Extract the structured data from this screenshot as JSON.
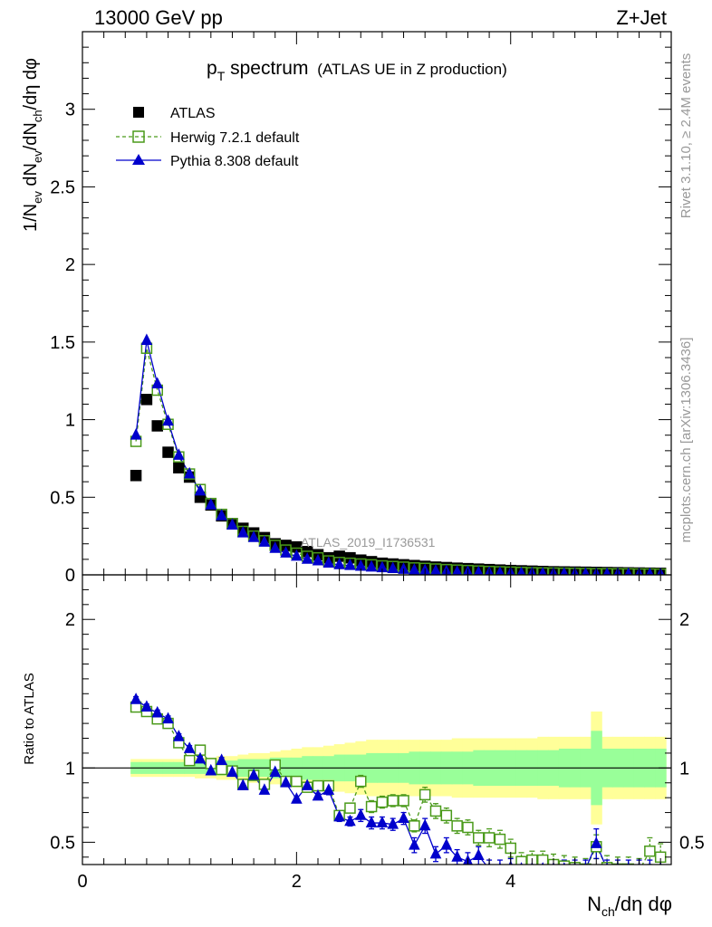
{
  "header": {
    "left": "13000 GeV pp",
    "right": "Z+Jet"
  },
  "title": {
    "main": "p",
    "main_sub": "T",
    "main_rest": " spectrum",
    "detail": "(ATLAS UE in Z production)"
  },
  "side_labels": {
    "rivet": "Rivet 3.1.10, ≥ 2.4M events",
    "mcplots": "mcplots.cern.ch [arXiv:1306.3436]"
  },
  "watermark": "ATLAS_2019_I1736531",
  "ylabel_main": {
    "p1": "1/N",
    "s1": "ev",
    "p2": " dN",
    "s2": "ev",
    "p3": "/dN",
    "s3": "ch",
    "p4": "/dη dφ"
  },
  "ylabel_ratio": "Ratio to ATLAS",
  "xlabel": {
    "p1": "N",
    "s1": "ch",
    "p2": "/dη dφ"
  },
  "colors": {
    "atlas": "#000000",
    "herwig": "#4a9a1a",
    "pythia": "#0000cc",
    "band_outer": "#ffff99",
    "band_inner": "#99ff99"
  },
  "chart_data": [
    {
      "type": "scatter",
      "name": "main-panel",
      "xlim": [
        0,
        5.5
      ],
      "ylim": [
        0,
        3.5
      ],
      "yticks": [
        {
          "v": 0,
          "label": "0"
        },
        {
          "v": 0.5,
          "label": "0.5"
        },
        {
          "v": 1,
          "label": "1"
        },
        {
          "v": 1.5,
          "label": "1.5"
        },
        {
          "v": 2,
          "label": "2"
        },
        {
          "v": 2.5,
          "label": "2.5"
        },
        {
          "v": 3,
          "label": "3"
        }
      ],
      "legend_position": "top-left",
      "x": [
        0.5,
        0.6,
        0.7,
        0.8,
        0.9,
        1.0,
        1.1,
        1.2,
        1.3,
        1.4,
        1.5,
        1.6,
        1.7,
        1.8,
        1.9,
        2.0,
        2.1,
        2.2,
        2.3,
        2.4,
        2.5,
        2.6,
        2.7,
        2.8,
        2.9,
        3.0,
        3.1,
        3.2,
        3.3,
        3.4,
        3.5,
        3.6,
        3.7,
        3.8,
        3.9,
        4.0,
        4.1,
        4.2,
        4.3,
        4.4,
        4.5,
        4.6,
        4.7,
        4.8,
        4.9,
        5.0,
        5.1,
        5.2,
        5.3,
        5.4
      ],
      "series": [
        {
          "name": "ATLAS",
          "values": [
            0.64,
            1.13,
            0.96,
            0.79,
            0.69,
            0.63,
            0.5,
            0.45,
            0.38,
            0.33,
            0.3,
            0.27,
            0.24,
            0.2,
            0.19,
            0.18,
            0.15,
            0.13,
            0.11,
            0.12,
            0.11,
            0.095,
            0.085,
            0.075,
            0.07,
            0.065,
            0.06,
            0.055,
            0.05,
            0.047,
            0.043,
            0.04,
            0.037,
            0.034,
            0.031,
            0.028,
            0.026,
            0.024,
            0.022,
            0.02,
            0.019,
            0.018,
            0.017,
            0.016,
            0.015,
            0.014,
            0.013,
            0.012,
            0.011,
            0.01
          ]
        },
        {
          "name": "Herwig 7.2.1 default",
          "values": [
            0.86,
            1.46,
            1.19,
            0.97,
            0.76,
            0.65,
            0.55,
            0.46,
            0.39,
            0.33,
            0.28,
            0.25,
            0.22,
            0.19,
            0.16,
            0.14,
            0.12,
            0.11,
            0.09,
            0.08,
            0.075,
            0.07,
            0.065,
            0.058,
            0.054,
            0.05,
            0.045,
            0.042,
            0.038,
            0.034,
            0.031,
            0.028,
            0.025,
            0.022,
            0.02,
            0.018,
            0.016,
            0.014,
            0.013,
            0.012,
            0.011,
            0.01,
            0.009,
            0.008,
            0.008,
            0.007,
            0.007,
            0.006,
            0.006,
            0.005
          ]
        },
        {
          "name": "Pythia 8.308 default",
          "values": [
            0.9,
            1.51,
            1.23,
            0.99,
            0.77,
            0.65,
            0.54,
            0.45,
            0.38,
            0.32,
            0.27,
            0.24,
            0.21,
            0.17,
            0.14,
            0.12,
            0.1,
            0.09,
            0.075,
            0.065,
            0.06,
            0.055,
            0.05,
            0.045,
            0.04,
            0.035,
            0.03,
            0.027,
            0.024,
            0.021,
            0.018,
            0.016,
            0.014,
            0.012,
            0.011,
            0.01,
            0.009,
            0.008,
            0.007,
            0.006,
            0.006,
            0.005,
            0.005,
            0.004,
            0.004,
            0.004,
            0.003,
            0.003,
            0.003,
            0.003
          ]
        }
      ]
    },
    {
      "type": "scatter",
      "name": "ratio-panel",
      "xlim": [
        0,
        5.5
      ],
      "ylim": [
        0.35,
        2.3
      ],
      "xticks": [
        {
          "v": 0,
          "label": "0"
        },
        {
          "v": 2,
          "label": "2"
        },
        {
          "v": 4,
          "label": "4"
        }
      ],
      "yticks": [
        {
          "v": 0.5,
          "label": "0.5"
        },
        {
          "v": 1,
          "label": "1"
        },
        {
          "v": 2,
          "label": "2"
        }
      ],
      "reference_line": 1,
      "x": [
        0.5,
        0.6,
        0.7,
        0.8,
        0.9,
        1.0,
        1.1,
        1.2,
        1.3,
        1.4,
        1.5,
        1.6,
        1.7,
        1.8,
        1.9,
        2.0,
        2.1,
        2.2,
        2.3,
        2.4,
        2.5,
        2.6,
        2.7,
        2.8,
        2.9,
        3.0,
        3.1,
        3.2,
        3.3,
        3.4,
        3.5,
        3.6,
        3.7,
        3.8,
        3.9,
        4.0,
        4.1,
        4.2,
        4.3,
        4.4,
        4.5,
        4.6,
        4.7,
        4.8,
        4.9,
        5.0,
        5.1,
        5.2,
        5.3,
        5.4
      ],
      "band": {
        "inner": [
          0.04,
          0.04,
          0.04,
          0.04,
          0.04,
          0.04,
          0.04,
          0.05,
          0.05,
          0.05,
          0.06,
          0.06,
          0.06,
          0.07,
          0.07,
          0.07,
          0.08,
          0.08,
          0.08,
          0.09,
          0.09,
          0.09,
          0.1,
          0.1,
          0.1,
          0.1,
          0.11,
          0.11,
          0.11,
          0.11,
          0.11,
          0.11,
          0.12,
          0.12,
          0.12,
          0.12,
          0.12,
          0.12,
          0.12,
          0.12,
          0.13,
          0.13,
          0.13,
          0.25,
          0.13,
          0.13,
          0.13,
          0.13,
          0.13,
          0.13
        ],
        "outer": [
          0.06,
          0.06,
          0.06,
          0.06,
          0.06,
          0.06,
          0.07,
          0.07,
          0.08,
          0.08,
          0.09,
          0.1,
          0.1,
          0.11,
          0.12,
          0.13,
          0.14,
          0.14,
          0.15,
          0.16,
          0.17,
          0.18,
          0.19,
          0.19,
          0.19,
          0.19,
          0.19,
          0.19,
          0.19,
          0.19,
          0.2,
          0.2,
          0.2,
          0.2,
          0.2,
          0.2,
          0.2,
          0.2,
          0.21,
          0.21,
          0.21,
          0.21,
          0.21,
          0.38,
          0.21,
          0.21,
          0.21,
          0.21,
          0.21,
          0.21
        ]
      },
      "series": [
        {
          "name": "Herwig 7.2.1 default",
          "values": [
            1.41,
            1.38,
            1.33,
            1.3,
            1.17,
            1.05,
            1.12,
            1.03,
            0.99,
            0.98,
            0.89,
            0.95,
            0.89,
            1.02,
            0.91,
            0.91,
            0.87,
            0.88,
            0.88,
            0.68,
            0.73,
            0.91,
            0.74,
            0.77,
            0.78,
            0.78,
            0.61,
            0.82,
            0.71,
            0.68,
            0.61,
            0.6,
            0.53,
            0.53,
            0.52,
            0.46,
            0.37,
            0.38,
            0.38,
            0.35,
            0.34,
            0.33,
            0.32,
            0.47,
            0.33,
            0.32,
            0.32,
            0.31,
            0.44,
            0.4
          ],
          "errors": [
            0.02,
            0.02,
            0.02,
            0.02,
            0.02,
            0.02,
            0.02,
            0.02,
            0.02,
            0.02,
            0.02,
            0.02,
            0.02,
            0.02,
            0.02,
            0.02,
            0.02,
            0.02,
            0.03,
            0.03,
            0.03,
            0.04,
            0.04,
            0.04,
            0.04,
            0.04,
            0.04,
            0.05,
            0.05,
            0.05,
            0.05,
            0.05,
            0.05,
            0.06,
            0.06,
            0.06,
            0.06,
            0.06,
            0.06,
            0.07,
            0.07,
            0.07,
            0.07,
            0.08,
            0.08,
            0.08,
            0.08,
            0.08,
            0.09,
            0.09
          ]
        },
        {
          "name": "Pythia 8.308 default",
          "values": [
            1.46,
            1.41,
            1.37,
            1.33,
            1.21,
            1.13,
            1.06,
            0.98,
            1.05,
            0.97,
            0.88,
            0.95,
            0.85,
            0.97,
            0.9,
            0.79,
            0.88,
            0.81,
            0.85,
            0.67,
            0.64,
            0.68,
            0.63,
            0.63,
            0.62,
            0.66,
            0.48,
            0.61,
            0.42,
            0.48,
            0.4,
            0.37,
            0.41,
            0.32,
            0.32,
            0.33,
            0.32,
            0.32,
            0.32,
            0.32,
            0.32,
            0.32,
            0.32,
            0.49,
            0.32,
            0.32,
            0.32,
            0.32,
            0.32,
            0.32
          ],
          "errors": [
            0.02,
            0.02,
            0.02,
            0.02,
            0.02,
            0.02,
            0.02,
            0.02,
            0.02,
            0.02,
            0.02,
            0.02,
            0.02,
            0.02,
            0.02,
            0.02,
            0.02,
            0.02,
            0.03,
            0.03,
            0.03,
            0.04,
            0.04,
            0.04,
            0.04,
            0.04,
            0.05,
            0.05,
            0.05,
            0.05,
            0.05,
            0.06,
            0.06,
            0.06,
            0.06,
            0.06,
            0.06,
            0.06,
            0.06,
            0.06,
            0.06,
            0.06,
            0.06,
            0.1,
            0.06,
            0.06,
            0.06,
            0.06,
            0.06,
            0.06
          ]
        }
      ]
    }
  ]
}
